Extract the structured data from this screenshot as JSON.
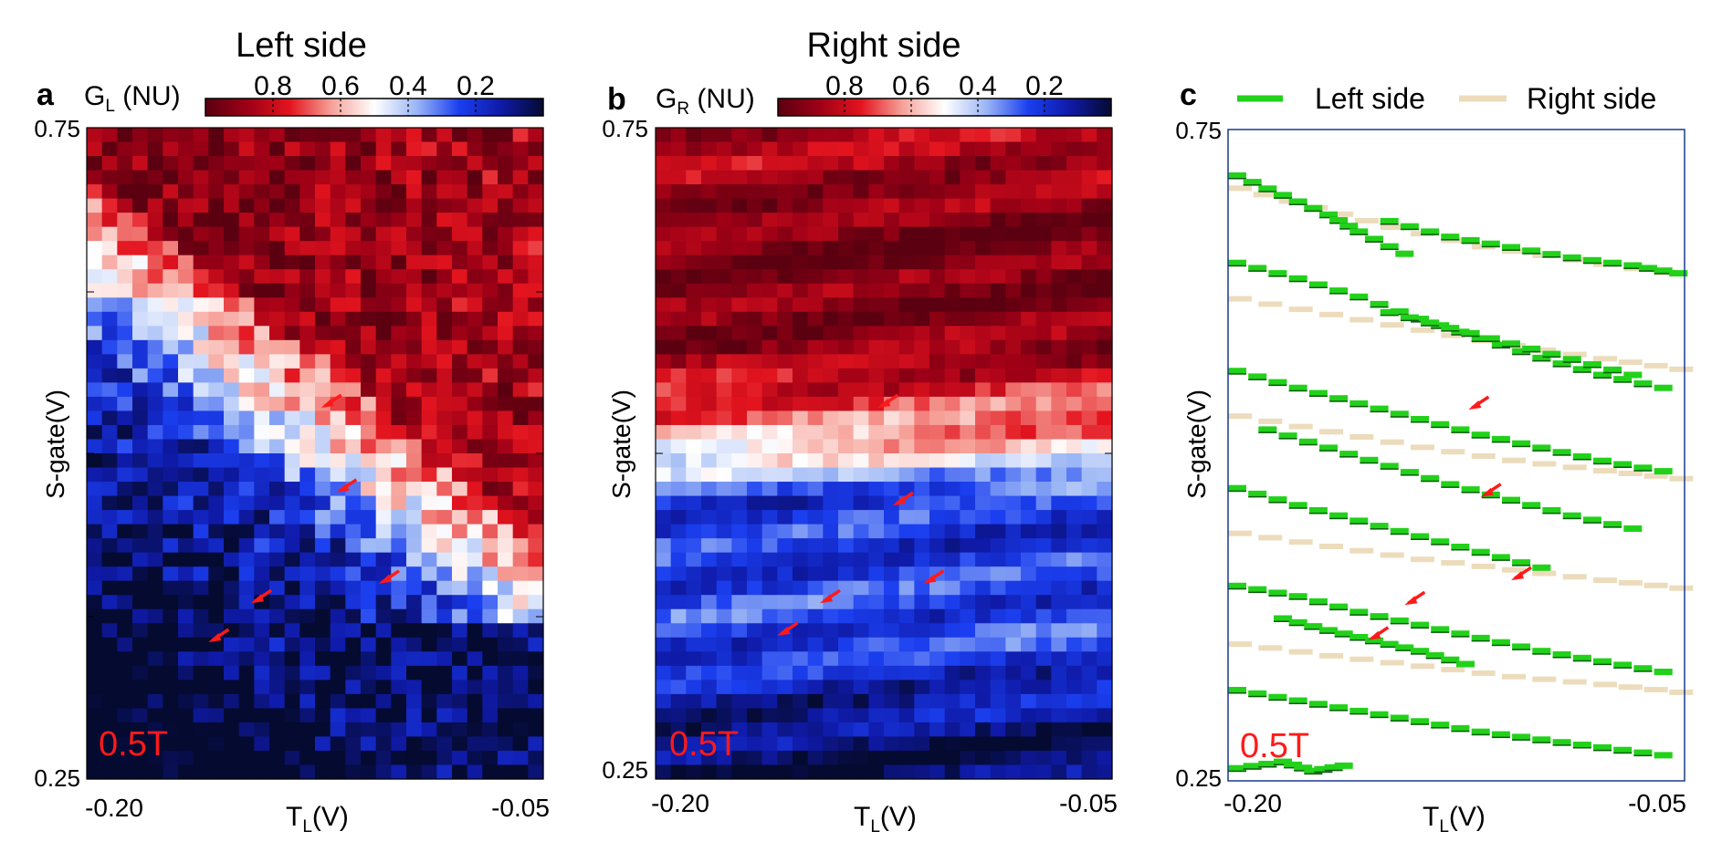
{
  "figure": {
    "note": "Three panels sharing T_L (V) and S-gate (V) axes at 0.5T"
  },
  "colorbar": {
    "ticks": [
      "0.8",
      "0.6",
      "0.4",
      "0.2"
    ],
    "tick_values": [
      0.8,
      0.6,
      0.4,
      0.2
    ],
    "range": [
      1.0,
      0.0
    ],
    "colors": [
      "#5a0010",
      "#9e0016",
      "#e3141e",
      "#f6a39a",
      "#ffffff",
      "#9bb6f5",
      "#1b3ff0",
      "#0f1aa8",
      "#050a30"
    ]
  },
  "panels": [
    {
      "letter": "a",
      "title": "Left side",
      "cbar_label": "G",
      "cbar_sub": "L",
      "cbar_unit": " (NU)",
      "xlabel_main": "T",
      "xlabel_sub": "L",
      "xlabel_unit": "(V)",
      "ylabel": "S-gate(V)",
      "xticks": [
        "-0.20",
        "-0.05"
      ],
      "yticks": [
        "0.75",
        "0.25"
      ],
      "field_label": "0.5T",
      "type": "heatmap"
    },
    {
      "letter": "b",
      "title": "Right side",
      "cbar_label": "G",
      "cbar_sub": "R",
      "cbar_unit": " (NU)",
      "xlabel_main": "T",
      "xlabel_sub": "L",
      "xlabel_unit": "(V)",
      "ylabel": "S-gate(V)",
      "xticks": [
        "-0.20",
        "-0.05"
      ],
      "yticks": [
        "0.75",
        "0.25"
      ],
      "field_label": "0.5T",
      "type": "heatmap"
    },
    {
      "letter": "c",
      "title": "",
      "legend": [
        {
          "label": "Left side",
          "color": "#22d11a"
        },
        {
          "label": "Right side",
          "color": "#ecdcbc"
        }
      ],
      "xlabel_main": "T",
      "xlabel_sub": "L",
      "xlabel_unit": "(V)",
      "ylabel": "S-gate(V)",
      "xticks": [
        "-0.20",
        "-0.05"
      ],
      "yticks": [
        "0.75",
        "0.25"
      ],
      "field_label": "0.5T",
      "type": "scatter"
    }
  ],
  "chart_data": [
    {
      "type": "heatmap",
      "title": "Left side",
      "xlabel": "T_L(V)",
      "ylabel": "S-gate(V)",
      "xlim": [
        -0.2,
        -0.05
      ],
      "ylim": [
        0.25,
        0.75
      ],
      "zlabel": "G_L (NU)",
      "zlim": [
        0,
        1
      ],
      "description_points": [
        {
          "x": -0.2,
          "y": 0.75,
          "G": 0.95
        },
        {
          "x": -0.05,
          "y": 0.75,
          "G": 0.85
        },
        {
          "x": -0.2,
          "y": 0.55,
          "G": 0.45
        },
        {
          "x": -0.05,
          "y": 0.55,
          "G": 0.8
        },
        {
          "x": -0.2,
          "y": 0.4,
          "G": 0.15
        },
        {
          "x": -0.05,
          "y": 0.4,
          "G": 0.7
        },
        {
          "x": -0.2,
          "y": 0.25,
          "G": 0.12
        },
        {
          "x": -0.05,
          "y": 0.25,
          "G": 0.05
        }
      ],
      "arrows": [
        {
          "x": -0.123,
          "y": 0.535
        },
        {
          "x": -0.118,
          "y": 0.47
        },
        {
          "x": -0.104,
          "y": 0.4
        },
        {
          "x": -0.146,
          "y": 0.385
        },
        {
          "x": -0.16,
          "y": 0.355
        }
      ]
    },
    {
      "type": "heatmap",
      "title": "Right side",
      "xlabel": "T_L(V)",
      "ylabel": "S-gate(V)",
      "xlim": [
        -0.2,
        -0.05
      ],
      "ylim": [
        0.25,
        0.75
      ],
      "zlabel": "G_R (NU)",
      "zlim": [
        0,
        1
      ],
      "bands": [
        {
          "y": 0.72,
          "G": 0.85
        },
        {
          "y": 0.66,
          "G": 0.95
        },
        {
          "y": 0.58,
          "G": 0.9
        },
        {
          "y": 0.51,
          "G": 0.6
        },
        {
          "y": 0.46,
          "G": 0.2
        },
        {
          "y": 0.36,
          "G": 0.25
        },
        {
          "y": 0.27,
          "G": 0.05
        }
      ],
      "arrows": [
        {
          "x": -0.127,
          "y": 0.535
        },
        {
          "x": -0.122,
          "y": 0.46
        },
        {
          "x": -0.112,
          "y": 0.4
        },
        {
          "x": -0.146,
          "y": 0.385
        },
        {
          "x": -0.16,
          "y": 0.36
        }
      ]
    },
    {
      "type": "scatter",
      "xlabel": "T_L(V)",
      "ylabel": "S-gate(V)",
      "xlim": [
        -0.2,
        -0.05
      ],
      "ylim": [
        0.25,
        0.75
      ],
      "series": [
        {
          "name": "Left side",
          "lines": [
            [
              [
                -0.2,
                0.715
              ],
              [
                -0.185,
                0.7
              ],
              [
                -0.17,
                0.685
              ],
              [
                -0.16,
                0.672
              ],
              [
                -0.145,
                0.655
              ]
            ],
            [
              [
                -0.2,
                0.648
              ],
              [
                -0.18,
                0.636
              ],
              [
                -0.16,
                0.622
              ],
              [
                -0.14,
                0.605
              ],
              [
                -0.12,
                0.59
              ],
              [
                -0.1,
                0.575
              ],
              [
                -0.08,
                0.562
              ],
              [
                -0.06,
                0.552
              ]
            ],
            [
              [
                -0.2,
                0.565
              ],
              [
                -0.18,
                0.552
              ],
              [
                -0.16,
                0.54
              ],
              [
                -0.14,
                0.528
              ],
              [
                -0.12,
                0.516
              ],
              [
                -0.1,
                0.506
              ],
              [
                -0.08,
                0.496
              ],
              [
                -0.06,
                0.488
              ]
            ],
            [
              [
                -0.2,
                0.475
              ],
              [
                -0.18,
                0.462
              ],
              [
                -0.16,
                0.45
              ],
              [
                -0.14,
                0.438
              ],
              [
                -0.12,
                0.426
              ],
              [
                -0.1,
                0.414
              ]
            ],
            [
              [
                -0.19,
                0.52
              ],
              [
                -0.17,
                0.506
              ],
              [
                -0.15,
                0.492
              ],
              [
                -0.13,
                0.478
              ],
              [
                -0.11,
                0.466
              ],
              [
                -0.09,
                0.454
              ],
              [
                -0.07,
                0.444
              ]
            ],
            [
              [
                -0.2,
                0.4
              ],
              [
                -0.18,
                0.392
              ],
              [
                -0.16,
                0.38
              ],
              [
                -0.14,
                0.37
              ],
              [
                -0.12,
                0.36
              ],
              [
                -0.1,
                0.35
              ],
              [
                -0.08,
                0.342
              ],
              [
                -0.06,
                0.334
              ]
            ],
            [
              [
                -0.185,
                0.375
              ],
              [
                -0.17,
                0.366
              ],
              [
                -0.155,
                0.358
              ],
              [
                -0.14,
                0.35
              ],
              [
                -0.125,
                0.34
              ]
            ],
            [
              [
                -0.2,
                0.32
              ],
              [
                -0.18,
                0.312
              ],
              [
                -0.16,
                0.304
              ],
              [
                -0.14,
                0.296
              ],
              [
                -0.12,
                0.288
              ],
              [
                -0.1,
                0.282
              ],
              [
                -0.08,
                0.276
              ],
              [
                -0.06,
                0.27
              ]
            ],
            [
              [
                -0.15,
                0.68
              ],
              [
                -0.13,
                0.668
              ],
              [
                -0.11,
                0.66
              ],
              [
                -0.09,
                0.652
              ],
              [
                -0.07,
                0.646
              ],
              [
                -0.055,
                0.64
              ]
            ],
            [
              [
                -0.15,
                0.61
              ],
              [
                -0.13,
                0.598
              ],
              [
                -0.11,
                0.586
              ],
              [
                -0.09,
                0.574
              ],
              [
                -0.07,
                0.562
              ]
            ],
            [
              [
                -0.2,
                0.26
              ],
              [
                -0.185,
                0.265
              ],
              [
                -0.175,
                0.258
              ],
              [
                -0.165,
                0.262
              ]
            ]
          ]
        },
        {
          "name": "Right side",
          "lines": [
            [
              [
                -0.2,
                0.705
              ],
              [
                -0.175,
                0.69
              ],
              [
                -0.15,
                0.675
              ],
              [
                -0.12,
                0.66
              ],
              [
                -0.09,
                0.65
              ],
              [
                -0.06,
                0.64
              ]
            ],
            [
              [
                -0.2,
                0.62
              ],
              [
                -0.17,
                0.608
              ],
              [
                -0.14,
                0.596
              ],
              [
                -0.11,
                0.584
              ],
              [
                -0.08,
                0.574
              ],
              [
                -0.055,
                0.566
              ]
            ],
            [
              [
                -0.2,
                0.53
              ],
              [
                -0.17,
                0.518
              ],
              [
                -0.14,
                0.506
              ],
              [
                -0.11,
                0.496
              ],
              [
                -0.08,
                0.488
              ],
              [
                -0.055,
                0.482
              ]
            ],
            [
              [
                -0.2,
                0.44
              ],
              [
                -0.17,
                0.43
              ],
              [
                -0.14,
                0.42
              ],
              [
                -0.11,
                0.412
              ],
              [
                -0.08,
                0.404
              ],
              [
                -0.055,
                0.398
              ]
            ],
            [
              [
                -0.2,
                0.355
              ],
              [
                -0.17,
                0.346
              ],
              [
                -0.14,
                0.338
              ],
              [
                -0.11,
                0.33
              ],
              [
                -0.08,
                0.324
              ],
              [
                -0.055,
                0.318
              ]
            ]
          ]
        }
      ],
      "arrows": [
        {
          "x": -0.121,
          "y": 0.535
        },
        {
          "x": -0.117,
          "y": 0.468
        },
        {
          "x": -0.107,
          "y": 0.404
        },
        {
          "x": -0.142,
          "y": 0.385
        },
        {
          "x": -0.154,
          "y": 0.358
        }
      ]
    }
  ]
}
